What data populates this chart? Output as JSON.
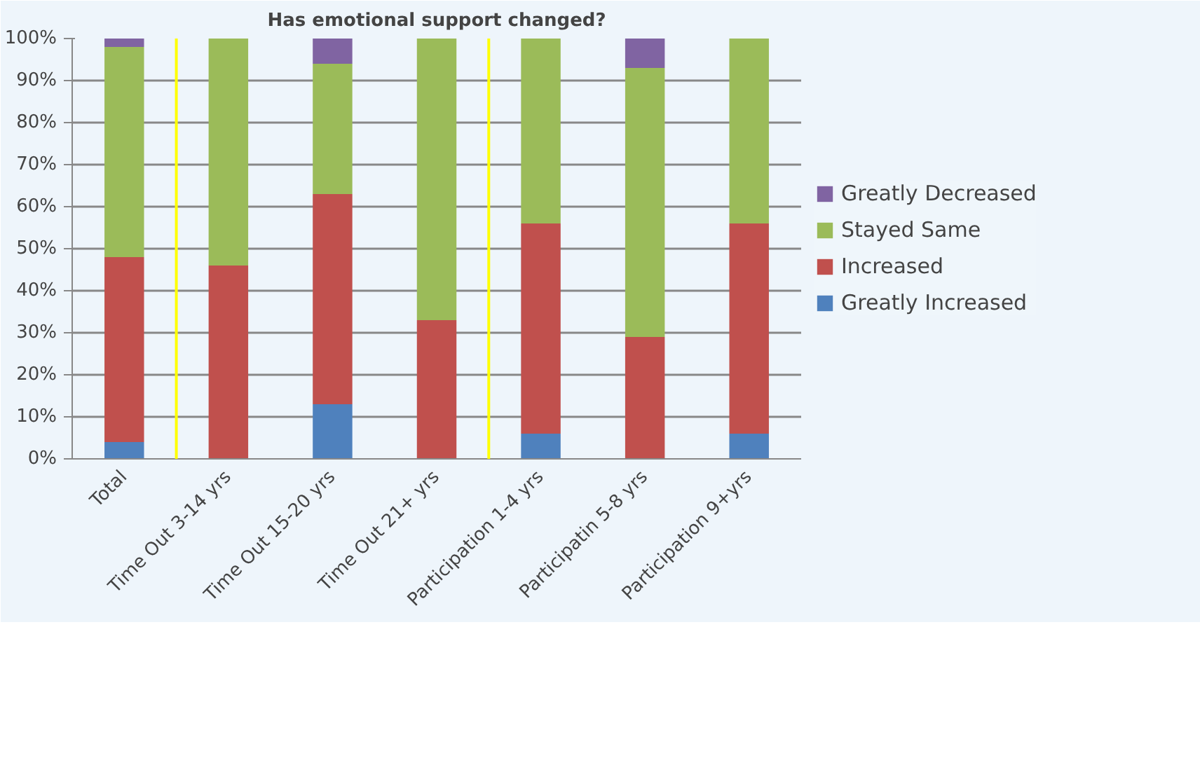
{
  "chart_data": {
    "type": "bar",
    "title": "Has emotional support changed?",
    "stacked": true,
    "categories": [
      "Total",
      "Time Out 3-14 yrs",
      "Time Out 15-20 yrs",
      "Time Out 21+ yrs",
      "Participation 1-4 yrs",
      "Participatin 5-8 yrs",
      "Participation 9+yrs"
    ],
    "series": [
      {
        "name": "Greatly Increased",
        "color": "#4f81bd",
        "values": [
          4,
          0,
          13,
          0,
          6,
          0,
          6
        ]
      },
      {
        "name": "Increased",
        "color": "#c0504d",
        "values": [
          44,
          46,
          50,
          33,
          50,
          29,
          50
        ]
      },
      {
        "name": "Stayed Same",
        "color": "#9bbb59",
        "values": [
          50,
          54,
          31,
          67,
          44,
          64,
          44
        ]
      },
      {
        "name": "Greatly Decreased",
        "color": "#8064a2",
        "values": [
          2,
          0,
          6,
          0,
          0,
          7,
          0
        ]
      }
    ],
    "ylim": [
      0,
      100
    ],
    "yticks": [
      {
        "value": 0,
        "label": "0%"
      },
      {
        "value": 10,
        "label": "10%"
      },
      {
        "value": 20,
        "label": "20%"
      },
      {
        "value": 30,
        "label": "30%"
      },
      {
        "value": 40,
        "label": "40%"
      },
      {
        "value": 50,
        "label": "50%"
      },
      {
        "value": 60,
        "label": "60%"
      },
      {
        "value": 70,
        "label": "70%"
      },
      {
        "value": 80,
        "label": "80%"
      },
      {
        "value": 90,
        "label": "90%"
      },
      {
        "value": 100,
        "label": "100%"
      }
    ],
    "grid": "y",
    "legend": "right"
  }
}
